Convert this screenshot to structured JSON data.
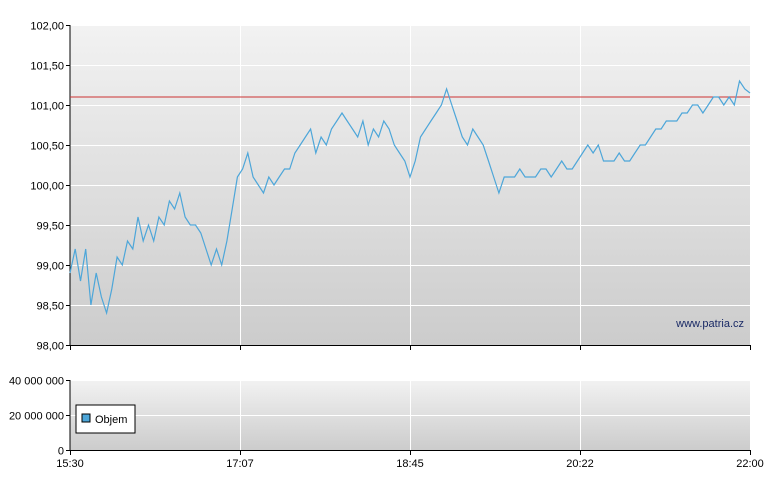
{
  "chart_data": [
    {
      "type": "line",
      "name_key": "price",
      "x_tick_labels": [
        "15:30",
        "17:07",
        "18:45",
        "20:22",
        "22:00"
      ],
      "x_range": [
        "15:30",
        "22:00"
      ],
      "y_tick_labels": [
        "102,00",
        "101,50",
        "101,00",
        "100,50",
        "100,00",
        "99,50",
        "99,00",
        "98,50",
        "98,00"
      ],
      "ylim": [
        98.0,
        102.0
      ],
      "reference_line": {
        "value": 101.1,
        "color": "#cc3333"
      },
      "watermark": "www.patria.cz",
      "grid": true,
      "series": [
        {
          "color": "#4da6d9",
          "points": [
            [
              "15:30",
              98.9
            ],
            [
              "15:33",
              99.2
            ],
            [
              "15:36",
              98.8
            ],
            [
              "15:39",
              99.2
            ],
            [
              "15:42",
              98.5
            ],
            [
              "15:45",
              98.9
            ],
            [
              "15:48",
              98.6
            ],
            [
              "15:51",
              98.4
            ],
            [
              "15:54",
              98.7
            ],
            [
              "15:57",
              99.1
            ],
            [
              "16:00",
              99.0
            ],
            [
              "16:03",
              99.3
            ],
            [
              "16:06",
              99.2
            ],
            [
              "16:09",
              99.6
            ],
            [
              "16:12",
              99.3
            ],
            [
              "16:15",
              99.5
            ],
            [
              "16:18",
              99.3
            ],
            [
              "16:21",
              99.6
            ],
            [
              "16:24",
              99.5
            ],
            [
              "16:27",
              99.8
            ],
            [
              "16:30",
              99.7
            ],
            [
              "16:33",
              99.9
            ],
            [
              "16:36",
              99.6
            ],
            [
              "16:39",
              99.5
            ],
            [
              "16:42",
              99.5
            ],
            [
              "16:45",
              99.4
            ],
            [
              "16:48",
              99.2
            ],
            [
              "16:51",
              99.0
            ],
            [
              "16:54",
              99.2
            ],
            [
              "16:57",
              99.0
            ],
            [
              "17:00",
              99.3
            ],
            [
              "17:03",
              99.7
            ],
            [
              "17:06",
              100.1
            ],
            [
              "17:09",
              100.2
            ],
            [
              "17:12",
              100.4
            ],
            [
              "17:15",
              100.1
            ],
            [
              "17:18",
              100.0
            ],
            [
              "17:21",
              99.9
            ],
            [
              "17:24",
              100.1
            ],
            [
              "17:27",
              100.0
            ],
            [
              "17:30",
              100.1
            ],
            [
              "17:33",
              100.2
            ],
            [
              "17:36",
              100.2
            ],
            [
              "17:39",
              100.4
            ],
            [
              "17:42",
              100.5
            ],
            [
              "17:45",
              100.6
            ],
            [
              "17:48",
              100.7
            ],
            [
              "17:51",
              100.4
            ],
            [
              "17:54",
              100.6
            ],
            [
              "17:57",
              100.5
            ],
            [
              "18:00",
              100.7
            ],
            [
              "18:03",
              100.8
            ],
            [
              "18:06",
              100.9
            ],
            [
              "18:09",
              100.8
            ],
            [
              "18:12",
              100.7
            ],
            [
              "18:15",
              100.6
            ],
            [
              "18:18",
              100.8
            ],
            [
              "18:21",
              100.5
            ],
            [
              "18:24",
              100.7
            ],
            [
              "18:27",
              100.6
            ],
            [
              "18:30",
              100.8
            ],
            [
              "18:33",
              100.7
            ],
            [
              "18:36",
              100.5
            ],
            [
              "18:39",
              100.4
            ],
            [
              "18:42",
              100.3
            ],
            [
              "18:45",
              100.1
            ],
            [
              "18:48",
              100.3
            ],
            [
              "18:51",
              100.6
            ],
            [
              "18:54",
              100.7
            ],
            [
              "18:57",
              100.8
            ],
            [
              "19:00",
              100.9
            ],
            [
              "19:03",
              101.0
            ],
            [
              "19:06",
              101.2
            ],
            [
              "19:09",
              101.0
            ],
            [
              "19:12",
              100.8
            ],
            [
              "19:15",
              100.6
            ],
            [
              "19:18",
              100.5
            ],
            [
              "19:21",
              100.7
            ],
            [
              "19:24",
              100.6
            ],
            [
              "19:27",
              100.5
            ],
            [
              "19:30",
              100.3
            ],
            [
              "19:33",
              100.1
            ],
            [
              "19:36",
              99.9
            ],
            [
              "19:39",
              100.1
            ],
            [
              "19:42",
              100.1
            ],
            [
              "19:45",
              100.1
            ],
            [
              "19:48",
              100.2
            ],
            [
              "19:51",
              100.1
            ],
            [
              "19:54",
              100.1
            ],
            [
              "19:57",
              100.1
            ],
            [
              "20:00",
              100.2
            ],
            [
              "20:03",
              100.2
            ],
            [
              "20:06",
              100.1
            ],
            [
              "20:09",
              100.2
            ],
            [
              "20:12",
              100.3
            ],
            [
              "20:15",
              100.2
            ],
            [
              "20:18",
              100.2
            ],
            [
              "20:21",
              100.3
            ],
            [
              "20:24",
              100.4
            ],
            [
              "20:27",
              100.5
            ],
            [
              "20:30",
              100.4
            ],
            [
              "20:33",
              100.5
            ],
            [
              "20:36",
              100.3
            ],
            [
              "20:39",
              100.3
            ],
            [
              "20:42",
              100.3
            ],
            [
              "20:45",
              100.4
            ],
            [
              "20:48",
              100.3
            ],
            [
              "20:51",
              100.3
            ],
            [
              "20:54",
              100.4
            ],
            [
              "20:57",
              100.5
            ],
            [
              "21:00",
              100.5
            ],
            [
              "21:03",
              100.6
            ],
            [
              "21:06",
              100.7
            ],
            [
              "21:09",
              100.7
            ],
            [
              "21:12",
              100.8
            ],
            [
              "21:15",
              100.8
            ],
            [
              "21:18",
              100.8
            ],
            [
              "21:21",
              100.9
            ],
            [
              "21:24",
              100.9
            ],
            [
              "21:27",
              101.0
            ],
            [
              "21:30",
              101.0
            ],
            [
              "21:33",
              100.9
            ],
            [
              "21:36",
              101.0
            ],
            [
              "21:39",
              101.1
            ],
            [
              "21:42",
              101.1
            ],
            [
              "21:45",
              101.0
            ],
            [
              "21:48",
              101.1
            ],
            [
              "21:51",
              101.0
            ],
            [
              "21:54",
              101.3
            ],
            [
              "21:57",
              101.2
            ],
            [
              "22:00",
              101.15
            ]
          ]
        }
      ]
    },
    {
      "type": "bar",
      "name_key": "volume",
      "y_tick_labels": [
        "40 000 000",
        "20 000 000",
        "0"
      ],
      "ylim": [
        0,
        40000000
      ],
      "x_tick_labels": [
        "15:30",
        "17:07",
        "18:45",
        "20:22",
        "22:00"
      ],
      "legend": {
        "label": "Objem",
        "color": "#4da6d9",
        "placement": "left"
      },
      "grid": true,
      "series": [
        {
          "name": "Objem",
          "values": []
        }
      ]
    }
  ]
}
